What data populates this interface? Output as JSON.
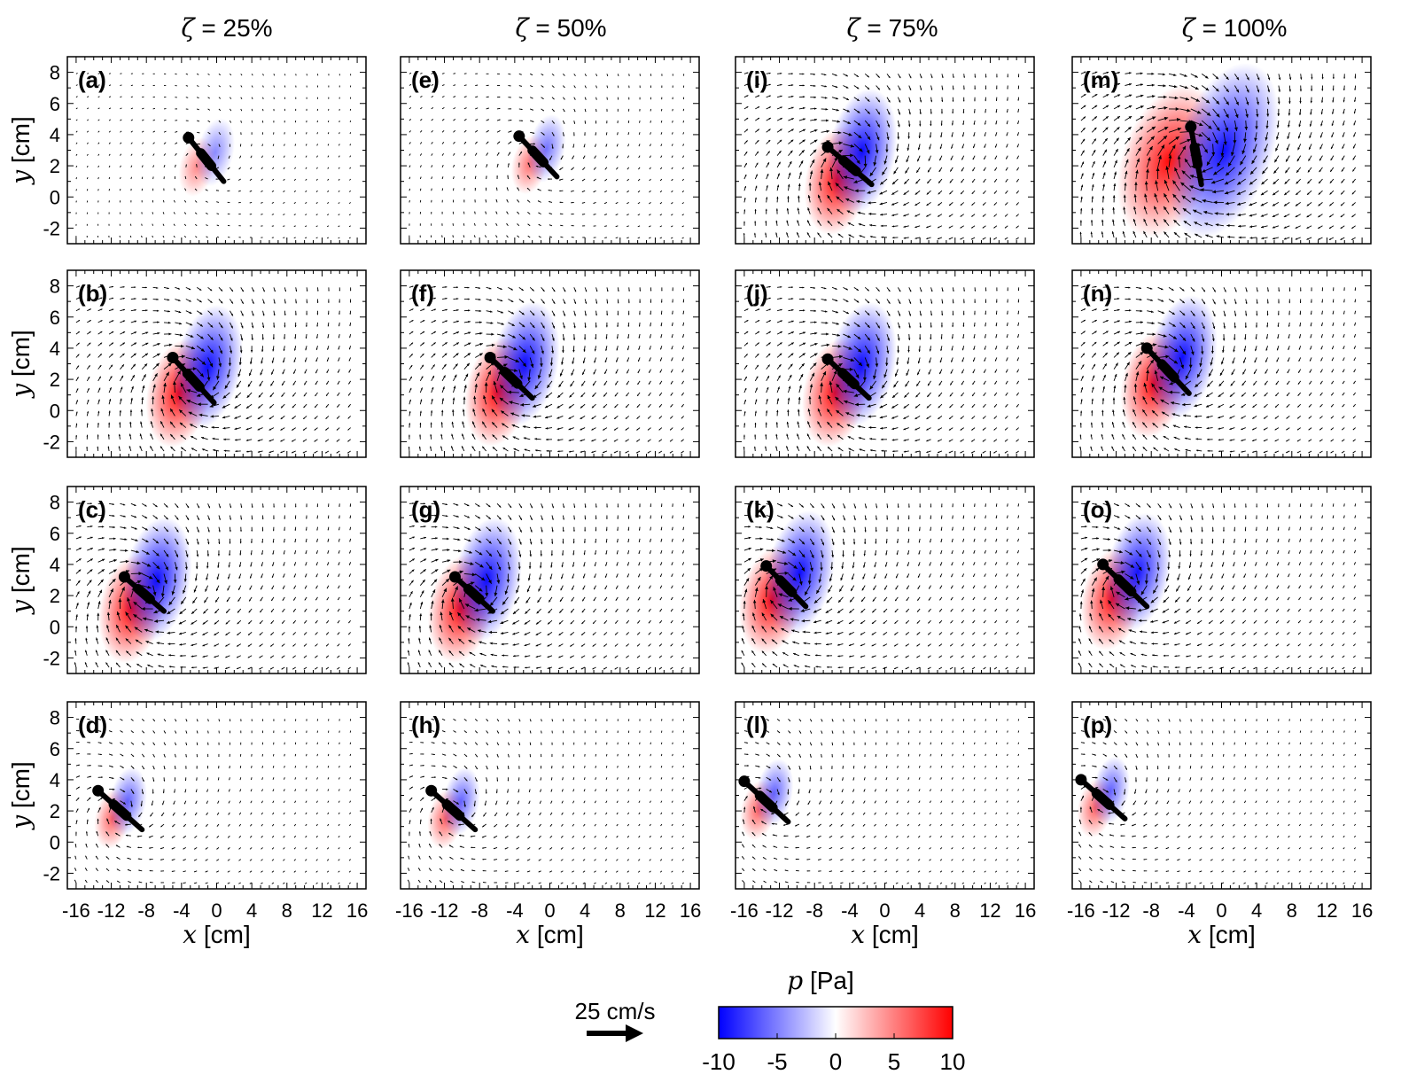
{
  "figure": {
    "column_titles": [
      "ζ = 25%",
      "ζ = 50%",
      "ζ = 75%",
      "ζ = 100%"
    ],
    "column_zeta": [
      "ζ",
      "ζ",
      "ζ",
      "ζ"
    ],
    "column_values": [
      "= 25%",
      "= 50%",
      "= 75%",
      "= 100%"
    ],
    "ylabel_var": "y",
    "ylabel_unit": "[cm]",
    "xlabel_var": "x",
    "xlabel_unit": "[cm]",
    "vector_scale": {
      "label": "25 cm/s"
    },
    "colorbar": {
      "title_var": "p",
      "title_unit": "[Pa]",
      "ticks": [
        "-10",
        "-5",
        "0",
        "5",
        "10"
      ],
      "min": -10,
      "max": 10,
      "colors": {
        "low": "#0000ff",
        "mid": "#ffffff",
        "high": "#ff0000"
      }
    }
  },
  "chart_data": {
    "type": "heatmap",
    "description_kind": "pressure field with velocity vectors",
    "xlim": [
      -17,
      17
    ],
    "ylim": [
      -3,
      9
    ],
    "xticks": [
      "-16",
      "-12",
      "-8",
      "-4",
      "0",
      "4",
      "8",
      "12",
      "16"
    ],
    "yticks": [
      "-2",
      "0",
      "2",
      "4",
      "6",
      "8"
    ],
    "panels": [
      {
        "label": "(a)",
        "col": 0,
        "row": 0,
        "head": [
          -3.2,
          3.8
        ],
        "tail": [
          0.8,
          1.0
        ],
        "amp": 0.2
      },
      {
        "label": "(b)",
        "col": 0,
        "row": 1,
        "head": [
          -5.0,
          3.4
        ],
        "tail": [
          -0.3,
          0.5
        ],
        "amp": 1.0
      },
      {
        "label": "(c)",
        "col": 0,
        "row": 2,
        "head": [
          -10.5,
          3.2
        ],
        "tail": [
          -6.0,
          1.0
        ],
        "amp": 1.0
      },
      {
        "label": "(d)",
        "col": 0,
        "row": 3,
        "head": [
          -13.5,
          3.3
        ],
        "tail": [
          -8.5,
          0.8
        ],
        "amp": 0.45
      },
      {
        "label": "(e)",
        "col": 1,
        "row": 0,
        "head": [
          -3.5,
          3.9
        ],
        "tail": [
          0.8,
          1.3
        ],
        "amp": 0.35
      },
      {
        "label": "(f)",
        "col": 1,
        "row": 1,
        "head": [
          -6.8,
          3.4
        ],
        "tail": [
          -2.0,
          0.8
        ],
        "amp": 1.0
      },
      {
        "label": "(g)",
        "col": 1,
        "row": 2,
        "head": [
          -10.8,
          3.2
        ],
        "tail": [
          -6.5,
          1.0
        ],
        "amp": 1.0
      },
      {
        "label": "(h)",
        "col": 1,
        "row": 3,
        "head": [
          -13.5,
          3.3
        ],
        "tail": [
          -8.5,
          0.8
        ],
        "amp": 0.45
      },
      {
        "label": "(i)",
        "col": 2,
        "row": 0,
        "head": [
          -6.5,
          3.2
        ],
        "tail": [
          -1.5,
          0.8
        ],
        "amp": 1.0
      },
      {
        "label": "(j)",
        "col": 2,
        "row": 1,
        "head": [
          -6.5,
          3.3
        ],
        "tail": [
          -1.8,
          0.8
        ],
        "amp": 1.0
      },
      {
        "label": "(k)",
        "col": 2,
        "row": 2,
        "head": [
          -13.5,
          3.9
        ],
        "tail": [
          -9.0,
          1.3
        ],
        "amp": 1.0
      },
      {
        "label": "(l)",
        "col": 2,
        "row": 3,
        "head": [
          -16.0,
          3.9
        ],
        "tail": [
          -11.0,
          1.3
        ],
        "amp": 0.45
      },
      {
        "label": "(m)",
        "col": 3,
        "row": 0,
        "head": [
          -3.5,
          4.5
        ],
        "tail": [
          -2.3,
          0.8
        ],
        "amp": 1.45
      },
      {
        "label": "(n)",
        "col": 3,
        "row": 1,
        "head": [
          -8.5,
          4.0
        ],
        "tail": [
          -3.7,
          1.1
        ],
        "amp": 1.0
      },
      {
        "label": "(o)",
        "col": 3,
        "row": 2,
        "head": [
          -13.5,
          4.0
        ],
        "tail": [
          -8.5,
          1.3
        ],
        "amp": 0.95
      },
      {
        "label": "(p)",
        "col": 3,
        "row": 3,
        "head": [
          -16.0,
          4.0
        ],
        "tail": [
          -11.0,
          1.5
        ],
        "amp": 0.45
      }
    ]
  }
}
